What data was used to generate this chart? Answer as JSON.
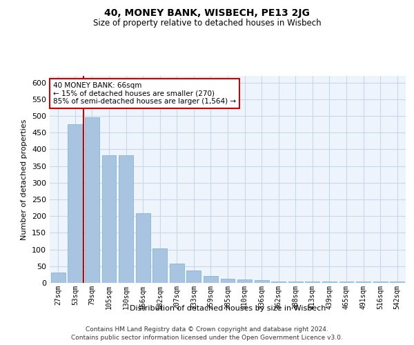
{
  "title": "40, MONEY BANK, WISBECH, PE13 2JG",
  "subtitle": "Size of property relative to detached houses in Wisbech",
  "xlabel": "Distribution of detached houses by size in Wisbech",
  "ylabel": "Number of detached properties",
  "categories": [
    "27sqm",
    "53sqm",
    "79sqm",
    "105sqm",
    "130sqm",
    "156sqm",
    "182sqm",
    "207sqm",
    "233sqm",
    "259sqm",
    "285sqm",
    "310sqm",
    "336sqm",
    "362sqm",
    "388sqm",
    "413sqm",
    "439sqm",
    "465sqm",
    "491sqm",
    "516sqm",
    "542sqm"
  ],
  "values": [
    32,
    475,
    497,
    382,
    382,
    209,
    104,
    58,
    38,
    20,
    13,
    11,
    8,
    5,
    5,
    5,
    4,
    5,
    4,
    5,
    5
  ],
  "bar_color": "#a8c4e0",
  "bar_edge_color": "#7aafc8",
  "grid_color": "#c8d8e8",
  "bg_color": "#eef4fb",
  "vline_color": "#cc0000",
  "annotation_text": "40 MONEY BANK: 66sqm\n← 15% of detached houses are smaller (270)\n85% of semi-detached houses are larger (1,564) →",
  "annotation_box_color": "#ffffff",
  "annotation_border_color": "#cc0000",
  "ylim": [
    0,
    620
  ],
  "yticks": [
    0,
    50,
    100,
    150,
    200,
    250,
    300,
    350,
    400,
    450,
    500,
    550,
    600
  ],
  "footer_line1": "Contains HM Land Registry data © Crown copyright and database right 2024.",
  "footer_line2": "Contains public sector information licensed under the Open Government Licence v3.0."
}
